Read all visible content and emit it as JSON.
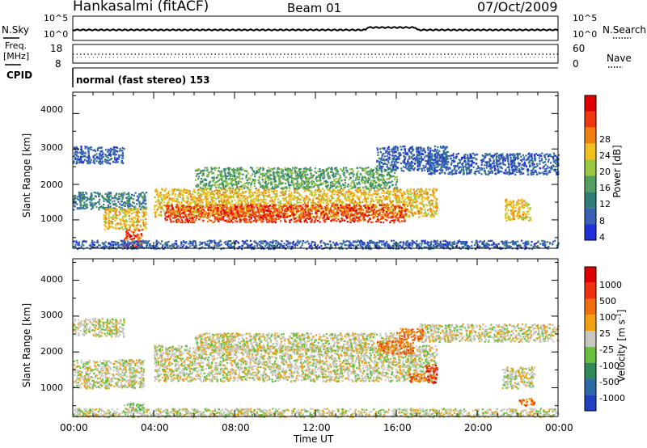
{
  "header": {
    "station": "Hankasalmi (fitACF)",
    "beam": "Beam 01",
    "date": "07/Oct/2009"
  },
  "top_panels": {
    "nsky_label": "N.Sky",
    "nsky_ticks": [
      "10^5",
      "10^0"
    ],
    "nsearch_label": "N.Search",
    "nsearch_ticks": [
      "10^5",
      "10^0"
    ],
    "freq_label": "Freq.",
    "freq_unit": "[MHz]",
    "freq_ticks": [
      "18",
      "8"
    ],
    "nave_label": "Nave",
    "nave_ticks": [
      "60",
      "0"
    ],
    "cpid_label": "CPID",
    "cpid_value": "normal (fast stereo) 153"
  },
  "colors": {
    "power": [
      "#2030d8",
      "#3a60b8",
      "#2f7f78",
      "#55a060",
      "#9ac840",
      "#f0c020",
      "#f08010",
      "#f03810",
      "#e00000"
    ],
    "velocity": [
      "#2040c0",
      "#2f6aa8",
      "#2e8a58",
      "#66c040",
      "#c8c8c0",
      "#f0a010",
      "#f07010",
      "#f03010",
      "#e00000"
    ]
  },
  "chart_data": [
    {
      "type": "heatmap",
      "name": "power",
      "xlabel": "",
      "ylabel": "Slant Range [km]",
      "xlim": [
        0,
        24
      ],
      "ylim": [
        200,
        4600
      ],
      "yticks": [
        "1000",
        "2000",
        "3000",
        "4000"
      ],
      "colorbar_label": "Power [dB]",
      "colorbar_ticks": [
        "4",
        "8",
        "12",
        "16",
        "20",
        "24",
        "28"
      ],
      "features": [
        {
          "x": [
            0.0,
            3.6
          ],
          "y_center": 1550,
          "y_halfwidth": 250,
          "level": 2
        },
        {
          "x": [
            1.5,
            3.6
          ],
          "y_center": 1050,
          "y_halfwidth": 300,
          "level": 5
        },
        {
          "x": [
            2.5,
            3.4
          ],
          "y_center": 500,
          "y_halfwidth": 250,
          "level": 7
        },
        {
          "x": [
            0.0,
            2.5
          ],
          "y_center": 2850,
          "y_halfwidth": 250,
          "level": 1
        },
        {
          "x": [
            4.0,
            18.0
          ],
          "y_center": 1500,
          "y_halfwidth": 400,
          "level": 5
        },
        {
          "x": [
            4.5,
            16.5
          ],
          "y_center": 1200,
          "y_halfwidth": 250,
          "level": 7
        },
        {
          "x": [
            6.0,
            16.0
          ],
          "y_center": 2200,
          "y_halfwidth": 300,
          "level": 3
        },
        {
          "x": [
            15.0,
            18.5
          ],
          "y_center": 2750,
          "y_halfwidth": 350,
          "level": 1
        },
        {
          "x": [
            17.5,
            24.0
          ],
          "y_center": 2600,
          "y_halfwidth": 300,
          "level": 1
        },
        {
          "x": [
            21.3,
            22.6
          ],
          "y_center": 1300,
          "y_halfwidth": 300,
          "level": 5
        },
        {
          "x": [
            0.0,
            24.0
          ],
          "y_center": 320,
          "y_halfwidth": 120,
          "level": 1
        }
      ]
    },
    {
      "type": "heatmap",
      "name": "velocity",
      "xlabel": "Time UT",
      "ylabel": "Slant Range [km]",
      "xlim": [
        0,
        24
      ],
      "ylim": [
        200,
        4600
      ],
      "xticks": [
        "00:00",
        "04:00",
        "08:00",
        "12:00",
        "16:00",
        "20:00",
        "00:00"
      ],
      "yticks": [
        "1000",
        "2000",
        "3000",
        "4000"
      ],
      "colorbar_label": "Velocity [m s-1]",
      "colorbar_ticks": [
        "1000",
        "500",
        "100",
        "25",
        "-25",
        "-100",
        "-500",
        "-1000"
      ],
      "features": [
        {
          "x": [
            0.0,
            3.5
          ],
          "y_center": 1400,
          "y_halfwidth": 400,
          "level": 4
        },
        {
          "x": [
            0.0,
            2.5
          ],
          "y_center": 2700,
          "y_halfwidth": 250,
          "level": 4
        },
        {
          "x": [
            4.0,
            18.0
          ],
          "y_center": 1700,
          "y_halfwidth": 500,
          "level": 4
        },
        {
          "x": [
            6.0,
            16.0
          ],
          "y_center": 2300,
          "y_halfwidth": 250,
          "level": 4
        },
        {
          "x": [
            17.0,
            24.0
          ],
          "y_center": 2550,
          "y_halfwidth": 250,
          "level": 4
        },
        {
          "x": [
            21.2,
            22.8
          ],
          "y_center": 1300,
          "y_halfwidth": 300,
          "level": 4
        },
        {
          "x": [
            15.0,
            16.8
          ],
          "y_center": 2150,
          "y_halfwidth": 180,
          "level": 6
        },
        {
          "x": [
            16.0,
            17.3
          ],
          "y_center": 2500,
          "y_halfwidth": 180,
          "level": 6
        },
        {
          "x": [
            17.4,
            18.0
          ],
          "y_center": 1400,
          "y_halfwidth": 250,
          "level": 7
        },
        {
          "x": [
            16.6,
            17.4
          ],
          "y_center": 1300,
          "y_halfwidth": 120,
          "level": 6
        },
        {
          "x": [
            22.0,
            22.8
          ],
          "y_center": 620,
          "y_halfwidth": 100,
          "level": 6
        },
        {
          "x": [
            2.5,
            3.5
          ],
          "y_center": 450,
          "y_halfwidth": 150,
          "level": 3
        },
        {
          "x": [
            0.0,
            24.0
          ],
          "y_center": 320,
          "y_halfwidth": 120,
          "level": 4
        }
      ]
    }
  ]
}
